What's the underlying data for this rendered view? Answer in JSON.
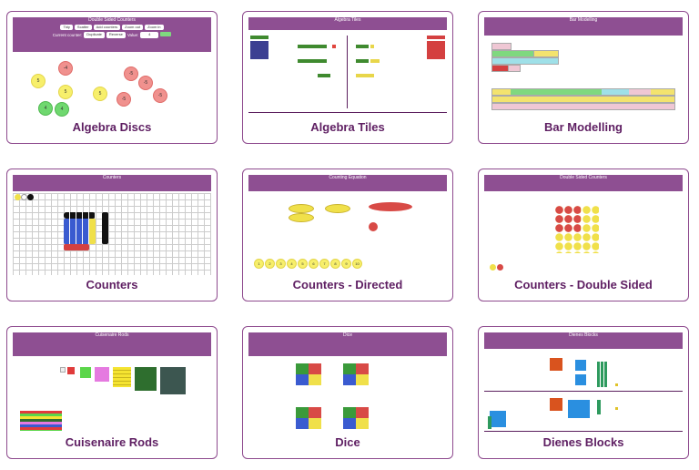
{
  "cards": [
    {
      "title": "Algebra Discs",
      "header": "Double Sided Counters",
      "row1": [
        "Tidy",
        "Scatter",
        "Add counters",
        "Zoom out",
        "Zoom in"
      ],
      "row2_label": "Current counter:",
      "row2": [
        "Duplicate",
        "Reverse",
        "Value:"
      ],
      "value": "4"
    },
    {
      "title": "Algebra Tiles",
      "header": "Algebra Tiles"
    },
    {
      "title": "Bar Modelling",
      "header": "Bar Modelling"
    },
    {
      "title": "Counters",
      "header": "Counters"
    },
    {
      "title": "Counters - Directed",
      "header": "Counting Equation"
    },
    {
      "title": "Counters - Double Sided",
      "header": "Double Sided Counters"
    },
    {
      "title": "Cuisenaire Rods",
      "header": "Cuisenaire Rods"
    },
    {
      "title": "Dice",
      "header": "Dice"
    },
    {
      "title": "Dienes Blocks",
      "header": "Dienes Blocks"
    }
  ],
  "disc_values": {
    "yellow": [
      "5",
      "5",
      "5"
    ],
    "red": [
      "-4",
      "-5",
      "-5",
      "-5",
      "-5"
    ],
    "green": [
      "4",
      "4"
    ]
  },
  "directed_counter_labels": [
    "1",
    "2",
    "3",
    "4",
    "5",
    "6",
    "7",
    "8",
    "9",
    "10"
  ]
}
